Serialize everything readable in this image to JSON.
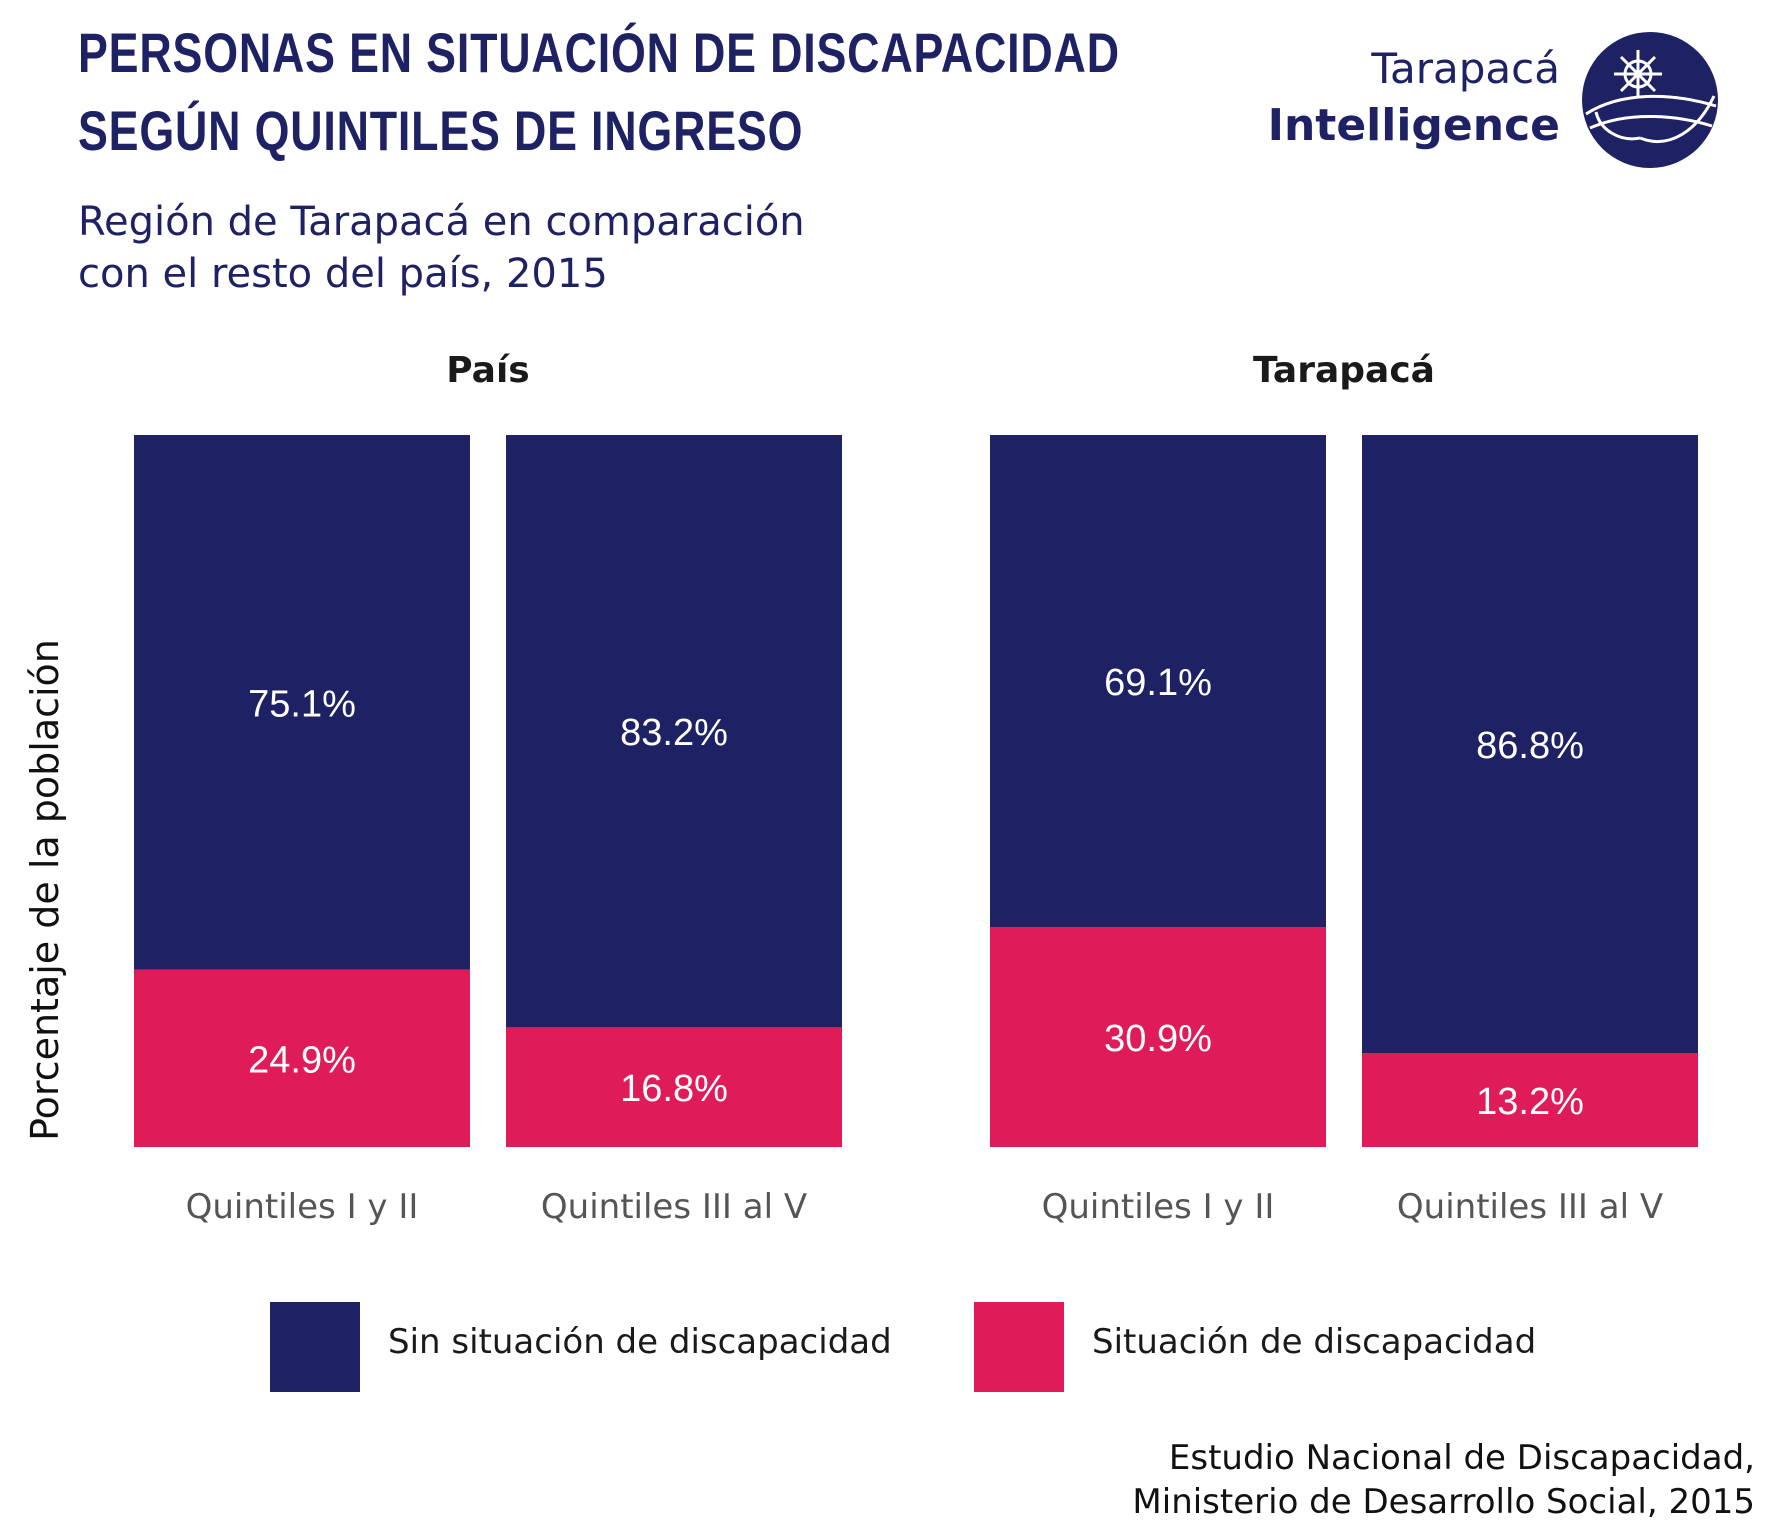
{
  "title": [
    "PERSONAS EN SITUACIÓN DE DISCAPACIDAD",
    "SEGÚN QUINTILES DE INGRESO"
  ],
  "subtitle": [
    "Región de Tarapacá en comparación",
    "con el resto del país, 2015"
  ],
  "logo": {
    "line1": "Tarapacá",
    "line2": "Intelligence"
  },
  "source": [
    "Estudio Nacional de Discapacidad,",
    "Ministerio de Desarrollo Social, 2015"
  ],
  "colors": {
    "dark": "#1e2264",
    "pink": "#e01c58"
  },
  "chart_data": {
    "type": "bar",
    "stacked": true,
    "ylabel": "Porcentaje de la población",
    "ylim": [
      0,
      100
    ],
    "grid": false,
    "legend_position": "bottom",
    "legend": [
      "Sin situación de discapacidad",
      "Situación de discapacidad"
    ],
    "panels": [
      {
        "title": "País",
        "categories": [
          "Quintiles I y II",
          "Quintiles III al V"
        ],
        "series": [
          {
            "name": "Sin situación de discapacidad",
            "values": [
              75.1,
              83.2
            ],
            "labels": [
              "75.1%",
              "83.2%"
            ],
            "color": "#1e2264"
          },
          {
            "name": "Situación de discapacidad",
            "values": [
              24.9,
              16.8
            ],
            "labels": [
              "24.9%",
              "16.8%"
            ],
            "color": "#e01c58"
          }
        ]
      },
      {
        "title": "Tarapacá",
        "categories": [
          "Quintiles I y II",
          "Quintiles III al V"
        ],
        "series": [
          {
            "name": "Sin situación de discapacidad",
            "values": [
              69.1,
              86.8
            ],
            "labels": [
              "69.1%",
              "86.8%"
            ],
            "color": "#1e2264"
          },
          {
            "name": "Situación de discapacidad",
            "values": [
              30.9,
              13.2
            ],
            "labels": [
              "30.9%",
              "13.2%"
            ],
            "color": "#e01c58"
          }
        ]
      }
    ]
  }
}
